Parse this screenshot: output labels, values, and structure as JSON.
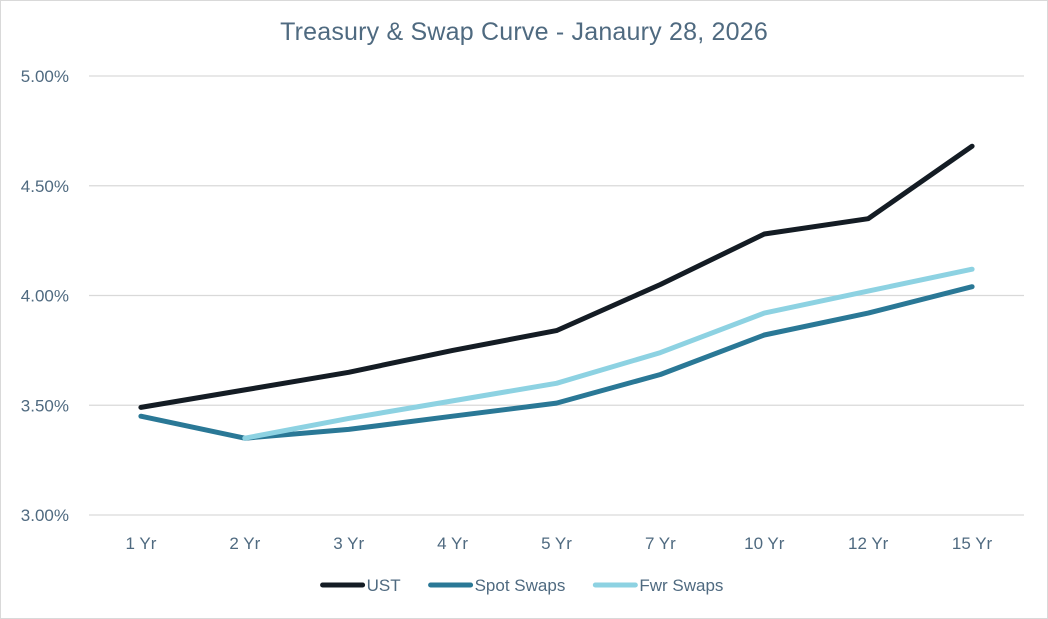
{
  "chart_data": {
    "type": "line",
    "title": "Treasury & Swap Curve - Janaury 28, 2026",
    "xlabel": "",
    "ylabel": "",
    "categories": [
      "1 Yr",
      "2 Yr",
      "3 Yr",
      "4 Yr",
      "5 Yr",
      "7 Yr",
      "10 Yr",
      "12 Yr",
      "15 Yr"
    ],
    "ylim": [
      3.0,
      5.0
    ],
    "yticks": [
      {
        "value": 5.0,
        "label": "5.00%"
      },
      {
        "value": 4.5,
        "label": "4.50%"
      },
      {
        "value": 4.0,
        "label": "4.00%"
      },
      {
        "value": 3.5,
        "label": "3.50%"
      },
      {
        "value": 3.0,
        "label": "3.00%"
      }
    ],
    "grid": true,
    "legend_position": "bottom",
    "series": [
      {
        "name": "UST",
        "color": "#141c24",
        "values": [
          3.49,
          3.57,
          3.65,
          3.75,
          3.84,
          4.05,
          4.28,
          4.35,
          4.68
        ]
      },
      {
        "name": "Spot Swaps",
        "color": "#2a7896",
        "values": [
          3.45,
          3.35,
          3.39,
          3.45,
          3.51,
          3.64,
          3.82,
          3.92,
          4.04
        ]
      },
      {
        "name": "Fwr Swaps",
        "color": "#8dd2e2",
        "values": [
          null,
          3.35,
          3.44,
          3.52,
          3.6,
          3.74,
          3.92,
          4.02,
          4.12
        ]
      }
    ]
  }
}
